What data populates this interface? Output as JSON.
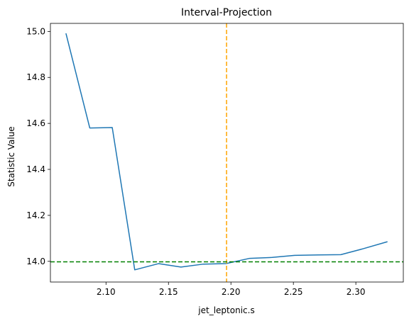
{
  "chart_data": {
    "type": "line",
    "title": "Interval-Projection",
    "xlabel": "jet_leptonic.s",
    "ylabel": "Statistic Value",
    "xlim": [
      2.0555,
      2.338
    ],
    "ylim": [
      13.91,
      15.035
    ],
    "xticks": [
      2.1,
      2.15,
      2.2,
      2.25,
      2.3
    ],
    "xtick_labels": [
      "2.10",
      "2.15",
      "2.20",
      "2.25",
      "2.30"
    ],
    "yticks": [
      14.0,
      14.2,
      14.4,
      14.6,
      14.8,
      15.0
    ],
    "ytick_labels": [
      "14.0",
      "14.2",
      "14.4",
      "14.6",
      "14.8",
      "15.0"
    ],
    "grid": false,
    "series": [
      {
        "color": "#1f77b4",
        "x": [
          2.068,
          2.087,
          2.105,
          2.123,
          2.142,
          2.16,
          2.178,
          2.196,
          2.215,
          2.233,
          2.251,
          2.27,
          2.288,
          2.306,
          2.325
        ],
        "y": [
          14.99,
          14.58,
          14.582,
          13.963,
          13.99,
          13.975,
          13.988,
          13.99,
          14.013,
          14.017,
          14.026,
          14.028,
          14.029,
          14.055,
          14.085
        ]
      }
    ],
    "reference_lines": [
      {
        "orientation": "vertical",
        "value": 2.1965,
        "color": "#ffa500",
        "style": "dashed"
      },
      {
        "orientation": "horizontal",
        "value": 13.998,
        "color": "#008000",
        "style": "dashed"
      }
    ]
  }
}
